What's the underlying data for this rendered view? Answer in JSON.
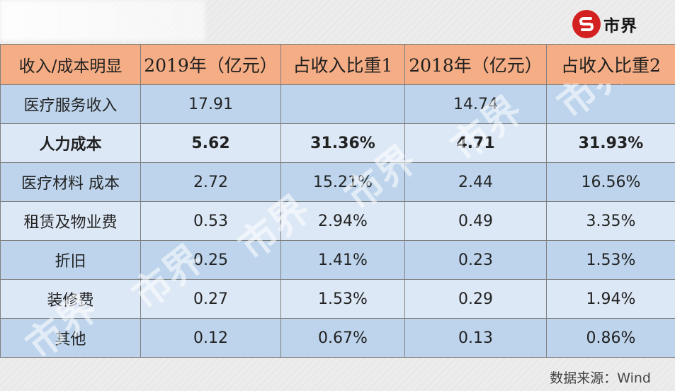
{
  "brand": {
    "logo_text": "市界",
    "logo_color": "#d32020"
  },
  "table": {
    "headers": [
      "收入/成本明显",
      "2019年（亿元）",
      "占收入比重1",
      "2018年（亿元）",
      "占收入比重2"
    ],
    "rows": [
      [
        "医疗服务收入",
        "17.91",
        "",
        "14.74",
        ""
      ],
      [
        "人力成本",
        "5.62",
        "31.36%",
        "4.71",
        "31.93%"
      ],
      [
        "医疗材料 成本",
        "2.72",
        "15.21%",
        "2.44",
        "16.56%"
      ],
      [
        "租赁及物业费",
        "0.53",
        "2.94%",
        "0.49",
        "3.35%"
      ],
      [
        "折旧",
        "0.25",
        "1.41%",
        "0.23",
        "1.53%"
      ],
      [
        "装修费",
        "0.27",
        "1.53%",
        "0.29",
        "1.94%"
      ],
      [
        "其他",
        "0.12",
        "0.67%",
        "0.13",
        "0.86%"
      ]
    ],
    "header_color": "#f4ad84",
    "row_colors": [
      "#bdd4ec",
      "#dde8f6"
    ]
  },
  "source": "数据来源：Wind"
}
